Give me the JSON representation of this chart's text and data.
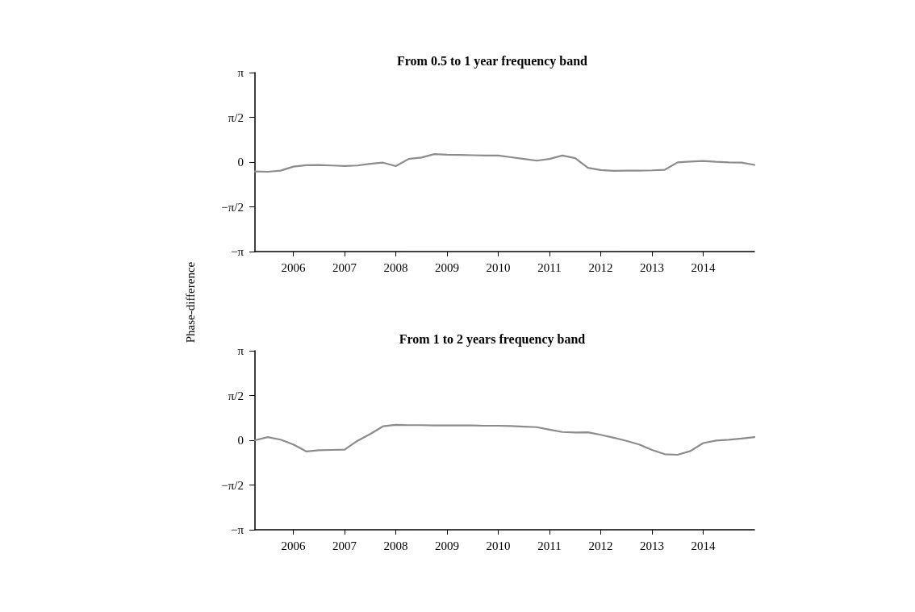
{
  "chart_data": [
    {
      "type": "line",
      "title": "From 0.5 to 1 year frequency band",
      "ylabel": "Phase-difference",
      "x": [
        2005.25,
        2005.5,
        2005.75,
        2006,
        2006.25,
        2006.5,
        2006.75,
        2007,
        2007.25,
        2007.5,
        2007.75,
        2008,
        2008.25,
        2008.5,
        2008.75,
        2009,
        2009.25,
        2009.5,
        2009.75,
        2010,
        2010.25,
        2010.5,
        2010.75,
        2011,
        2011.25,
        2011.5,
        2011.75,
        2012,
        2012.25,
        2012.5,
        2012.75,
        2013,
        2013.25,
        2013.5,
        2013.75,
        2014,
        2014.25,
        2014.5,
        2014.75,
        2015
      ],
      "series": [
        {
          "color": "#8c8c8c",
          "values": [
            -0.33,
            -0.34,
            -0.3,
            -0.16,
            -0.11,
            -0.1,
            -0.12,
            -0.14,
            -0.12,
            -0.06,
            -0.02,
            -0.14,
            0.11,
            0.16,
            0.28,
            0.26,
            0.25,
            0.24,
            0.23,
            0.23,
            0.17,
            0.11,
            0.05,
            0.11,
            0.23,
            0.14,
            -0.2,
            -0.28,
            -0.31,
            -0.3,
            -0.3,
            -0.29,
            -0.27,
            -0.01,
            0.02,
            0.04,
            0.01,
            -0.01,
            -0.02,
            -0.1
          ]
        }
      ],
      "xlim": [
        2005.25,
        2015
      ],
      "xticks": [
        2006,
        2007,
        2008,
        2009,
        2010,
        2011,
        2012,
        2013,
        2014
      ],
      "ylim": [
        -3.1416,
        3.1416
      ],
      "yticks": [
        {
          "value": -3.1416,
          "label": "−π"
        },
        {
          "value": -1.5708,
          "label": "−π/2"
        },
        0,
        {
          "value": 1.5708,
          "label": "π/2"
        },
        {
          "value": 3.1416,
          "label": "π"
        }
      ],
      "grid": false,
      "marker": "none",
      "line_style": "solid"
    },
    {
      "type": "line",
      "title": "From 1 to 2 years frequency band",
      "x": [
        2005.25,
        2005.5,
        2005.75,
        2006,
        2006.25,
        2006.5,
        2006.75,
        2007,
        2007.25,
        2007.5,
        2007.75,
        2008,
        2008.25,
        2008.5,
        2008.75,
        2009,
        2009.25,
        2009.5,
        2009.75,
        2010,
        2010.25,
        2010.5,
        2010.75,
        2011,
        2011.25,
        2011.5,
        2011.75,
        2012,
        2012.25,
        2012.5,
        2012.75,
        2013,
        2013.25,
        2013.5,
        2013.75,
        2014,
        2014.25,
        2014.5,
        2014.75,
        2015
      ],
      "series": [
        {
          "color": "#8c8c8c",
          "values": [
            0,
            0.11,
            0.02,
            -0.15,
            -0.39,
            -0.35,
            -0.34,
            -0.33,
            -0.02,
            0.22,
            0.49,
            0.54,
            0.53,
            0.53,
            0.52,
            0.52,
            0.52,
            0.52,
            0.51,
            0.51,
            0.5,
            0.48,
            0.46,
            0.37,
            0.29,
            0.27,
            0.28,
            0.19,
            0.09,
            -0.02,
            -0.15,
            -0.34,
            -0.49,
            -0.51,
            -0.38,
            -0.1,
            -0.01,
            0.02,
            0.06,
            0.11
          ]
        }
      ],
      "xlim": [
        2005.25,
        2015
      ],
      "xticks": [
        2006,
        2007,
        2008,
        2009,
        2010,
        2011,
        2012,
        2013,
        2014
      ],
      "ylim": [
        -3.1416,
        3.1416
      ],
      "yticks": [
        {
          "value": -3.1416,
          "label": "−π"
        },
        {
          "value": -1.5708,
          "label": "−π/2"
        },
        0,
        {
          "value": 1.5708,
          "label": "π/2"
        },
        {
          "value": 3.1416,
          "label": "π"
        }
      ],
      "grid": false,
      "marker": "none",
      "line_style": "solid"
    }
  ]
}
